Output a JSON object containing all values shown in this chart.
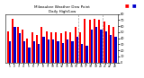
{
  "title": "Milwaukee Weather Dew Point",
  "subtitle": "Daily High/Low",
  "days": [
    1,
    2,
    3,
    4,
    5,
    6,
    7,
    8,
    9,
    10,
    11,
    12,
    13,
    14,
    15,
    16,
    17,
    18,
    19,
    20,
    21,
    22,
    23
  ],
  "high_values": [
    52,
    72,
    58,
    55,
    40,
    50,
    45,
    58,
    52,
    50,
    50,
    48,
    52,
    50,
    58,
    50,
    72,
    70,
    72,
    70,
    68,
    62,
    58
  ],
  "low_values": [
    35,
    58,
    48,
    35,
    25,
    35,
    30,
    42,
    38,
    38,
    35,
    32,
    38,
    35,
    42,
    30,
    28,
    55,
    58,
    55,
    52,
    45,
    42
  ],
  "high_color": "#ff0000",
  "low_color": "#0000cc",
  "ylim_min": 0,
  "ylim_max": 80,
  "yticks": [
    0,
    10,
    20,
    30,
    40,
    50,
    60,
    70,
    80
  ],
  "background_color": "#ffffff",
  "bar_width": 0.42,
  "dashed_vline1": 15.5,
  "dashed_vline2": 20.5
}
